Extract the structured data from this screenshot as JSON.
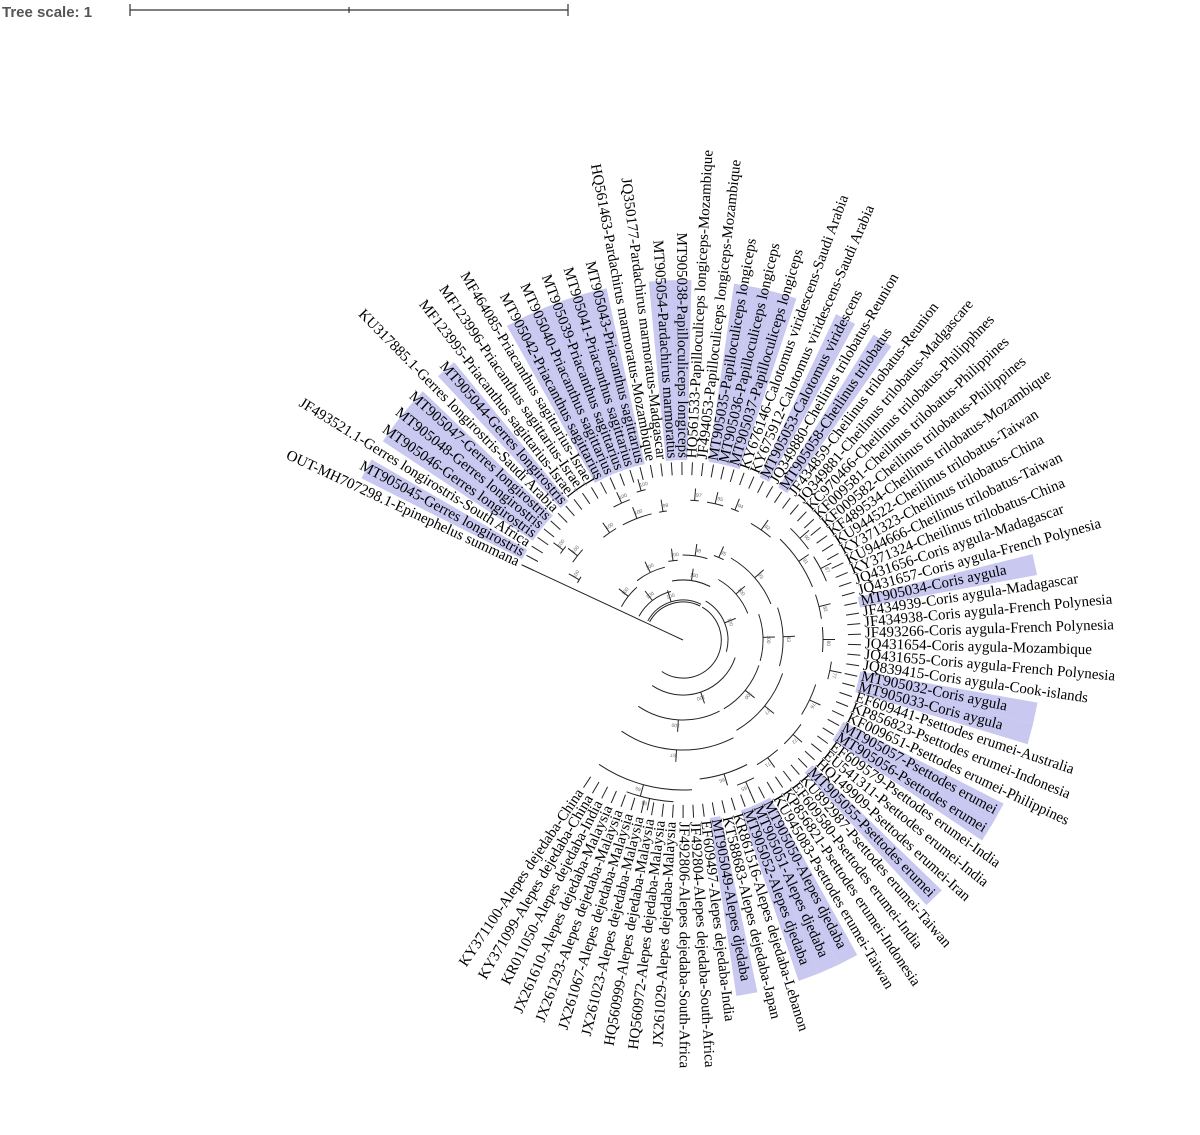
{
  "scale": {
    "label": "Tree scale: 1"
  },
  "highlight_color": "#c8c8f0",
  "leaves": [
    {
      "label": "OUT-MH707298.1-Epinephelus summana",
      "hl": false
    },
    {
      "label": "MT905045-Gerres longirostris",
      "hl": true
    },
    {
      "label": "JF493521.1-Gerres longirostris-South Africa",
      "hl": false
    },
    {
      "label": "MT905046-Gerres longirostris",
      "hl": true
    },
    {
      "label": "MT905048-Gerres longirostris",
      "hl": true
    },
    {
      "label": "MT905047-Gerres longirostris",
      "hl": true
    },
    {
      "label": "KU317885.1-Gerres longirostris-Saudi Arabia",
      "hl": false
    },
    {
      "label": "MT905044-Gerres longirostris",
      "hl": true
    },
    {
      "label": "MF123995-Priacanthus sagittarius-Israel",
      "hl": false
    },
    {
      "label": "MF123996-Priacanthus sagittarius-Israel",
      "hl": false
    },
    {
      "label": "MF464085-Priacanthus sagittarius-Israel",
      "hl": false
    },
    {
      "label": "MT905042-Priacanthus sagittarius",
      "hl": true
    },
    {
      "label": "MT905040-Priacanthus sagittarius",
      "hl": true
    },
    {
      "label": "MT905039-Priacanthus sagittarius",
      "hl": true
    },
    {
      "label": "MT905041-Priacanthus sagittarius",
      "hl": true
    },
    {
      "label": "MT905043-Priacanthus sagittarius",
      "hl": true
    },
    {
      "label": "HQ561463-Pardachirus marmoratus-Mozambique",
      "hl": false
    },
    {
      "label": "JQ350177-Pardachirus marmoratus-Madgascar",
      "hl": false
    },
    {
      "label": "MT905054-Pardachirus marmoratus",
      "hl": true
    },
    {
      "label": "MT905038-Papilloculiceps longiceps",
      "hl": true
    },
    {
      "label": "HQ561533-Papilloculiceps longiceps-Mozambique",
      "hl": false
    },
    {
      "label": "JF494053-Papilloculiceps longiceps-Mozambique",
      "hl": false
    },
    {
      "label": "MT905035-Papilloculiceps longiceps",
      "hl": true
    },
    {
      "label": "MT905036-Papilloculiceps longiceps",
      "hl": true
    },
    {
      "label": "MT905037-Papilloculiceps longiceps",
      "hl": true
    },
    {
      "label": "KY676146-Calotomus viridescens-Saudi Arabia",
      "hl": false
    },
    {
      "label": "KY675912-Calotomus viridescens-Saudi Arabia",
      "hl": false
    },
    {
      "label": "MT905053-Calotomus viridescens",
      "hl": true
    },
    {
      "label": "JQ349880-Cheilinus trilobatus-Reunion",
      "hl": false
    },
    {
      "label": "MT905058-Cheilinus trilobatus",
      "hl": true
    },
    {
      "label": "JF434859-Cheilinus trilobatus-Reunion",
      "hl": false
    },
    {
      "label": "JQ349881-Cheilinus trilobatus-Madgascare",
      "hl": false
    },
    {
      "label": "KC970466-Cheilinus trilobatus-Philipphnes",
      "hl": false
    },
    {
      "label": "KF009581-Cheilinus trilobatus-Philippines",
      "hl": false
    },
    {
      "label": "KF009582-Cheilinus trilobatus-Philippines",
      "hl": false
    },
    {
      "label": "KF489534-Cheilinus trilobatus-Mozambique",
      "hl": false
    },
    {
      "label": "KU944522-Cheilinus trilobatus-Taiwan",
      "hl": false
    },
    {
      "label": "KY371323-Cheilinus trilobatus-China",
      "hl": false
    },
    {
      "label": "KU944666-Cheilinus trilobatus-Taiwan",
      "hl": false
    },
    {
      "label": "KY371324-Cheilinus trilobatus-China",
      "hl": false
    },
    {
      "label": "JQ431656-Coris aygula-Madagascar",
      "hl": false
    },
    {
      "label": "JQ431657-Coris aygula-French Polynesia",
      "hl": false
    },
    {
      "label": "MT905034-Coris aygula",
      "hl": true
    },
    {
      "label": "JF434939-Coris aygula-Madagascar",
      "hl": false
    },
    {
      "label": "JF434938-Coris aygula-French Polynesia",
      "hl": false
    },
    {
      "label": "JF493266-Coris aygula-French Polynesia",
      "hl": false
    },
    {
      "label": "JQ431654-Coris aygula-Mozambique",
      "hl": false
    },
    {
      "label": "JQ431655-Coris aygula-French Polynesia",
      "hl": false
    },
    {
      "label": "JQ839415-Coris aygula-Cook-islands",
      "hl": false
    },
    {
      "label": "MT905032-Coris aygula",
      "hl": true
    },
    {
      "label": "MT905033-Coris aygula",
      "hl": true
    },
    {
      "label": "EF609441-Psettodes erumei-Australia",
      "hl": false
    },
    {
      "label": "KP856823-Psettodes erumei-Indonesia",
      "hl": false
    },
    {
      "label": "KF009651-Psettodes erumei-Philippines",
      "hl": false
    },
    {
      "label": "MT905057-Psettodes erumei",
      "hl": true
    },
    {
      "label": "MT905056-Psettodes erumei",
      "hl": true
    },
    {
      "label": "EF609579-Psettodes erumei-India",
      "hl": false
    },
    {
      "label": "EU541311-Psettodes erumei-India",
      "hl": false
    },
    {
      "label": "HQ149909-Psettodes erumei-Iran",
      "hl": false
    },
    {
      "label": "MT905055-Psettodes erumei",
      "hl": true
    },
    {
      "label": "KU892987-Psettodes erumei-Taiwan",
      "hl": false
    },
    {
      "label": "EF609580-Psettodes erumei-India",
      "hl": false
    },
    {
      "label": "KP856821-Psettodes erumei-Indonesia",
      "hl": false
    },
    {
      "label": "KU945083-Psettodes erumei-Taiwan",
      "hl": false
    },
    {
      "label": "MT905050-Alepes djedaba",
      "hl": true
    },
    {
      "label": "MT905051-Alepes djedaba",
      "hl": true
    },
    {
      "label": "MT905052-Alepes djedaba",
      "hl": true
    },
    {
      "label": "KR861516-Alepes dejedaba-Lebanon",
      "hl": false
    },
    {
      "label": "KT588683-Alepes dejedaba-Japan",
      "hl": false
    },
    {
      "label": "MT905049-Alepes djedaba",
      "hl": true
    },
    {
      "label": "EF609497-Alepes dejedaba-India",
      "hl": false
    },
    {
      "label": "JF492804-Alepes dejedaba-South-Africa",
      "hl": false
    },
    {
      "label": "JF492806-Alepes dejedaba-South-Africa",
      "hl": false
    },
    {
      "label": "JX261029-Alepes dejedaba-Malaysia",
      "hl": false
    },
    {
      "label": "HQ560972-Alepes dejedaba-Malaysia",
      "hl": false
    },
    {
      "label": "HQ560999-Alepes dejedaba-Malaysia",
      "hl": false
    },
    {
      "label": "JX261023-Alepes dejedaba-Malaysia",
      "hl": false
    },
    {
      "label": "JX261067-Alepes dejedaba-Malaysia",
      "hl": false
    },
    {
      "label": "JX261293-Alepes dejedaba-Malaysia",
      "hl": false
    },
    {
      "label": "JX261610-Alepes dejedaba-Malaysia",
      "hl": false
    },
    {
      "label": "KR011050-Alepes dejedaba-India",
      "hl": false
    },
    {
      "label": "KY371099-Alepes dejedaba-China",
      "hl": false
    },
    {
      "label": "KY371100-Alepes dejedaba-China",
      "hl": false
    }
  ],
  "bootstrap_labels": [
    "100",
    "100",
    "100",
    "100",
    "100",
    "100",
    "100",
    "100",
    "100",
    "100",
    "100",
    "100",
    "100",
    "100",
    "100",
    "100",
    "100",
    "100",
    "100",
    "99",
    "98",
    "97",
    "95",
    "95",
    "94",
    "93",
    "92",
    "91",
    "90",
    "87",
    "83",
    "82",
    "80",
    "77",
    "77",
    "76",
    "72",
    "71",
    "67",
    "66",
    "65",
    "65",
    "64",
    "62",
    "62",
    "61",
    "59",
    "52",
    "52",
    "51",
    "49",
    "49",
    "49",
    "48",
    "48",
    "43",
    "42",
    "42",
    "42",
    "41",
    "39",
    "37",
    "34",
    "33",
    "32",
    "31",
    "24",
    "20",
    "15",
    "11",
    "7"
  ]
}
